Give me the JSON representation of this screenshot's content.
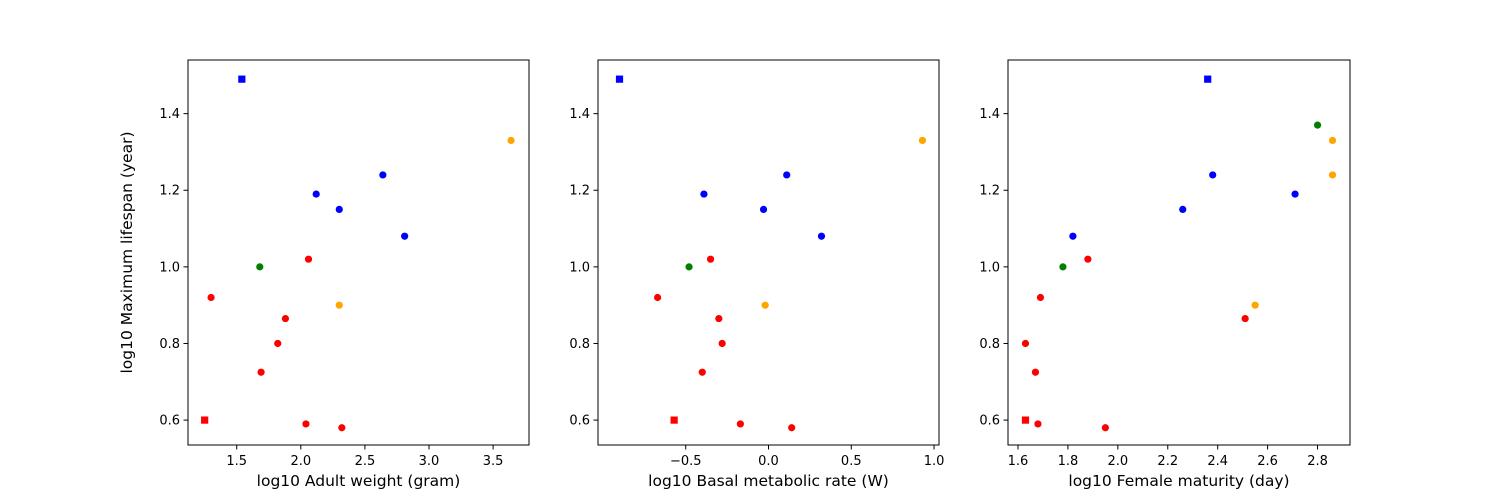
{
  "chart_data": [
    {
      "type": "scatter",
      "xlabel": "log10 Adult weight (gram)",
      "ylabel": "log10 Maximum lifespan (year)",
      "xlim": [
        1.12,
        3.78
      ],
      "ylim": [
        0.535,
        1.54
      ],
      "xticks": [
        "1.5",
        "2.0",
        "2.5",
        "3.0",
        "3.5"
      ],
      "yticks": [
        "0.6",
        "0.8",
        "1.0",
        "1.2",
        "1.4"
      ],
      "points": [
        {
          "x": 1.54,
          "y": 1.49,
          "color": "#0000ff",
          "marker": "square"
        },
        {
          "x": 1.25,
          "y": 0.6,
          "color": "#ff0000",
          "marker": "square"
        },
        {
          "x": 2.12,
          "y": 1.19,
          "color": "#0000ff",
          "marker": "circle"
        },
        {
          "x": 2.3,
          "y": 1.15,
          "color": "#0000ff",
          "marker": "circle"
        },
        {
          "x": 2.64,
          "y": 1.24,
          "color": "#0000ff",
          "marker": "circle"
        },
        {
          "x": 2.81,
          "y": 1.08,
          "color": "#0000ff",
          "marker": "circle"
        },
        {
          "x": 1.68,
          "y": 1.0,
          "color": "#008000",
          "marker": "circle"
        },
        {
          "x": 1.3,
          "y": 0.92,
          "color": "#ff0000",
          "marker": "circle"
        },
        {
          "x": 2.06,
          "y": 1.02,
          "color": "#ff0000",
          "marker": "circle"
        },
        {
          "x": 1.88,
          "y": 0.865,
          "color": "#ff0000",
          "marker": "circle"
        },
        {
          "x": 1.82,
          "y": 0.8,
          "color": "#ff0000",
          "marker": "circle"
        },
        {
          "x": 1.69,
          "y": 0.725,
          "color": "#ff0000",
          "marker": "circle"
        },
        {
          "x": 2.04,
          "y": 0.59,
          "color": "#ff0000",
          "marker": "circle"
        },
        {
          "x": 2.32,
          "y": 0.58,
          "color": "#ff0000",
          "marker": "circle"
        },
        {
          "x": 2.3,
          "y": 0.9,
          "color": "#ffa500",
          "marker": "circle"
        },
        {
          "x": 3.64,
          "y": 1.33,
          "color": "#ffa500",
          "marker": "circle"
        }
      ]
    },
    {
      "type": "scatter",
      "xlabel": "log10 Basal metabolic rate (W)",
      "ylabel": "",
      "xlim": [
        -1.03,
        1.03
      ],
      "ylim": [
        0.535,
        1.54
      ],
      "xticks": [
        "−0.5",
        "0.0",
        "0.5",
        "1.0"
      ],
      "yticks": [
        "0.6",
        "0.8",
        "1.0",
        "1.2",
        "1.4"
      ],
      "points": [
        {
          "x": -0.9,
          "y": 1.49,
          "color": "#0000ff",
          "marker": "square"
        },
        {
          "x": -0.57,
          "y": 0.6,
          "color": "#ff0000",
          "marker": "square"
        },
        {
          "x": -0.39,
          "y": 1.19,
          "color": "#0000ff",
          "marker": "circle"
        },
        {
          "x": -0.03,
          "y": 1.15,
          "color": "#0000ff",
          "marker": "circle"
        },
        {
          "x": 0.11,
          "y": 1.24,
          "color": "#0000ff",
          "marker": "circle"
        },
        {
          "x": 0.32,
          "y": 1.08,
          "color": "#0000ff",
          "marker": "circle"
        },
        {
          "x": -0.48,
          "y": 1.0,
          "color": "#008000",
          "marker": "circle"
        },
        {
          "x": -0.67,
          "y": 0.92,
          "color": "#ff0000",
          "marker": "circle"
        },
        {
          "x": -0.35,
          "y": 1.02,
          "color": "#ff0000",
          "marker": "circle"
        },
        {
          "x": -0.3,
          "y": 0.865,
          "color": "#ff0000",
          "marker": "circle"
        },
        {
          "x": -0.28,
          "y": 0.8,
          "color": "#ff0000",
          "marker": "circle"
        },
        {
          "x": -0.4,
          "y": 0.725,
          "color": "#ff0000",
          "marker": "circle"
        },
        {
          "x": -0.17,
          "y": 0.59,
          "color": "#ff0000",
          "marker": "circle"
        },
        {
          "x": 0.14,
          "y": 0.58,
          "color": "#ff0000",
          "marker": "circle"
        },
        {
          "x": -0.02,
          "y": 0.9,
          "color": "#ffa500",
          "marker": "circle"
        },
        {
          "x": 0.93,
          "y": 1.33,
          "color": "#ffa500",
          "marker": "circle"
        }
      ]
    },
    {
      "type": "scatter",
      "xlabel": "log10 Female maturity (day)",
      "ylabel": "",
      "xlim": [
        1.56,
        2.93
      ],
      "ylim": [
        0.535,
        1.54
      ],
      "xticks": [
        "1.6",
        "1.8",
        "2.0",
        "2.2",
        "2.4",
        "2.6",
        "2.8"
      ],
      "yticks": [
        "0.6",
        "0.8",
        "1.0",
        "1.2",
        "1.4"
      ],
      "points": [
        {
          "x": 2.36,
          "y": 1.49,
          "color": "#0000ff",
          "marker": "square"
        },
        {
          "x": 1.63,
          "y": 0.6,
          "color": "#ff0000",
          "marker": "square"
        },
        {
          "x": 2.71,
          "y": 1.19,
          "color": "#0000ff",
          "marker": "circle"
        },
        {
          "x": 2.26,
          "y": 1.15,
          "color": "#0000ff",
          "marker": "circle"
        },
        {
          "x": 2.38,
          "y": 1.24,
          "color": "#0000ff",
          "marker": "circle"
        },
        {
          "x": 1.82,
          "y": 1.08,
          "color": "#0000ff",
          "marker": "circle"
        },
        {
          "x": 1.78,
          "y": 1.0,
          "color": "#008000",
          "marker": "circle"
        },
        {
          "x": 2.8,
          "y": 1.37,
          "color": "#008000",
          "marker": "circle"
        },
        {
          "x": 1.69,
          "y": 0.92,
          "color": "#ff0000",
          "marker": "circle"
        },
        {
          "x": 1.88,
          "y": 1.02,
          "color": "#ff0000",
          "marker": "circle"
        },
        {
          "x": 2.51,
          "y": 0.865,
          "color": "#ff0000",
          "marker": "circle"
        },
        {
          "x": 1.63,
          "y": 0.8,
          "color": "#ff0000",
          "marker": "circle"
        },
        {
          "x": 1.67,
          "y": 0.725,
          "color": "#ff0000",
          "marker": "circle"
        },
        {
          "x": 1.68,
          "y": 0.59,
          "color": "#ff0000",
          "marker": "circle"
        },
        {
          "x": 1.95,
          "y": 0.58,
          "color": "#ff0000",
          "marker": "circle"
        },
        {
          "x": 2.55,
          "y": 0.9,
          "color": "#ffa500",
          "marker": "circle"
        },
        {
          "x": 2.86,
          "y": 1.33,
          "color": "#ffa500",
          "marker": "circle"
        },
        {
          "x": 2.86,
          "y": 1.24,
          "color": "#ffa500",
          "marker": "circle"
        }
      ]
    }
  ]
}
